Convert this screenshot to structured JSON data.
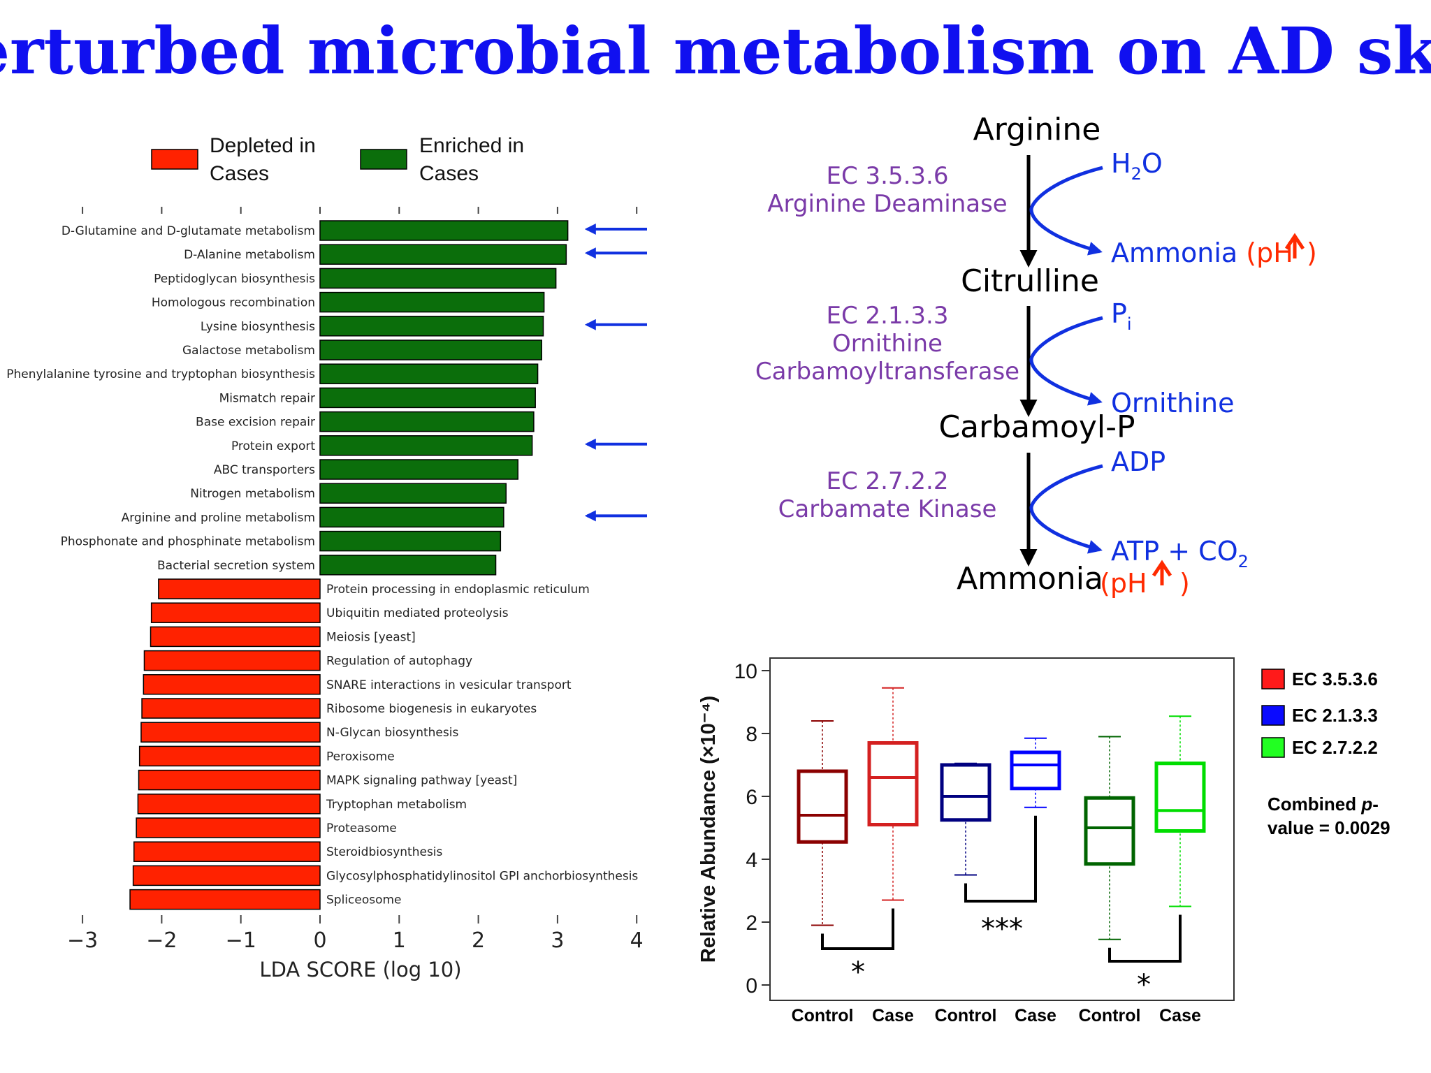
{
  "title": "Perturbed microbial metabolism on AD skin",
  "chart_data": [
    {
      "type": "bar",
      "orientation": "horizontal",
      "xlabel": "LDA SCORE (log 10)",
      "xlim": [
        -3,
        4
      ],
      "xticks": [
        "-3",
        "-2",
        "-1",
        "0",
        "1",
        "2",
        "3",
        "4"
      ],
      "legend": [
        {
          "name": "Depleted in Cases",
          "color": "#ff2200"
        },
        {
          "name": "Enriched in Cases",
          "color": "#0b6e0b"
        }
      ],
      "categories": [
        "D-Glutamine and D-glutamate metabolism",
        "D-Alanine metabolism",
        "Peptidoglycan biosynthesis",
        "Homologous recombination",
        "Lysine biosynthesis",
        "Galactose metabolism",
        "Phenylalanine tyrosine and tryptophan biosynthesis",
        "Mismatch repair",
        "Base excision repair",
        "Protein export",
        "ABC transporters",
        "Nitrogen metabolism",
        "Arginine and proline metabolism",
        "Phosphonate and phosphinate metabolism",
        "Bacterial secretion system",
        "Protein processing in endoplasmic reticulum",
        "Ubiquitin mediated proteolysis",
        "Meiosis [yeast]",
        "Regulation of autophagy",
        "SNARE interactions in vesicular transport",
        "Ribosome biogenesis in eukaryotes",
        "N-Glycan biosynthesis",
        "Peroxisome",
        "MAPK signaling pathway [yeast]",
        "Tryptophan metabolism",
        "Proteasome",
        "Steroidbiosynthesis",
        "Glycosylphosphatidylinositol GPI anchorbiosynthesis",
        "Spliceosome"
      ],
      "values": [
        3.13,
        3.11,
        2.98,
        2.83,
        2.82,
        2.8,
        2.75,
        2.72,
        2.7,
        2.68,
        2.5,
        2.35,
        2.32,
        2.28,
        2.22,
        -2.04,
        -2.13,
        -2.14,
        -2.22,
        -2.23,
        -2.25,
        -2.26,
        -2.28,
        -2.29,
        -2.3,
        -2.32,
        -2.35,
        -2.36,
        -2.4
      ],
      "highlighted": [
        "D-Glutamine and D-glutamate metabolism",
        "D-Alanine metabolism",
        "Lysine biosynthesis",
        "Protein export",
        "Arginine and proline metabolism"
      ],
      "colors": {
        "enriched": "#0b6e0b",
        "depleted": "#ff2200",
        "arrow": "#1030e0"
      }
    },
    {
      "type": "box",
      "ylabel": "Relative Abundance (×10⁻⁴)",
      "ylim": [
        0,
        10
      ],
      "yticks": [
        "0",
        "2",
        "4",
        "6",
        "8",
        "10"
      ],
      "series": [
        {
          "name": "EC 3.5.3.6",
          "color": "#ff1a1a",
          "groups": [
            {
              "label": "Control",
              "min": 1.9,
              "q1": 4.55,
              "median": 5.4,
              "q3": 6.8,
              "max": 8.4,
              "color": "#8b0000"
            },
            {
              "label": "Case",
              "min": 2.7,
              "q1": 5.1,
              "median": 6.6,
              "q3": 7.7,
              "max": 9.45,
              "color": "#d42020"
            }
          ],
          "significance": "*"
        },
        {
          "name": "EC 2.1.3.3",
          "color": "#0a0aff",
          "groups": [
            {
              "label": "Control",
              "min": 3.5,
              "q1": 5.25,
              "median": 6.0,
              "q3": 7.0,
              "max": 7.05,
              "color": "#000080"
            },
            {
              "label": "Case",
              "min": 5.65,
              "q1": 6.25,
              "median": 7.0,
              "q3": 7.4,
              "max": 7.85,
              "color": "#0000ff"
            }
          ],
          "significance": "***"
        },
        {
          "name": "EC 2.7.2.2",
          "color": "#22ff22",
          "groups": [
            {
              "label": "Control",
              "min": 1.45,
              "q1": 3.85,
              "median": 5.0,
              "q3": 5.95,
              "max": 7.9,
              "color": "#006400"
            },
            {
              "label": "Case",
              "min": 2.5,
              "q1": 4.9,
              "median": 5.55,
              "q3": 7.05,
              "max": 8.55,
              "color": "#00dd00"
            }
          ],
          "significance": "*"
        }
      ],
      "annotation": "Combined p-value = 0.0029",
      "annotation_parts": {
        "prefix": "Combined ",
        "italic": "p",
        "suffix": "-",
        "line2": "value = 0.0029"
      }
    }
  ],
  "pathway": {
    "steps": [
      "Arginine",
      "Citrulline",
      "Carbamoyl-P",
      "Ammonia"
    ],
    "final_ph": "(pH",
    "ph_close": ")",
    "enzymes": [
      {
        "lines": [
          "EC 3.5.3.6",
          "Arginine Deaminase"
        ],
        "in": "H",
        "in_sub": "2",
        "in_tail": "O",
        "out": "Ammonia ",
        "out_ph": "(pH",
        "out_ph_close": " )"
      },
      {
        "lines": [
          "EC 2.1.3.3",
          "Ornithine",
          "Carbamoyltransferase"
        ],
        "in": "P",
        "in_sub": "i",
        "out": "Ornithine"
      },
      {
        "lines": [
          "EC 2.7.2.2",
          "Carbamate Kinase"
        ],
        "in": "ADP",
        "out": "ATP + CO",
        "out_sub": "2"
      }
    ],
    "colors": {
      "enzyme": "#7a3aa8",
      "compound": "#1030e0",
      "ph": "#ff2a00",
      "arrow": "#000000"
    }
  }
}
